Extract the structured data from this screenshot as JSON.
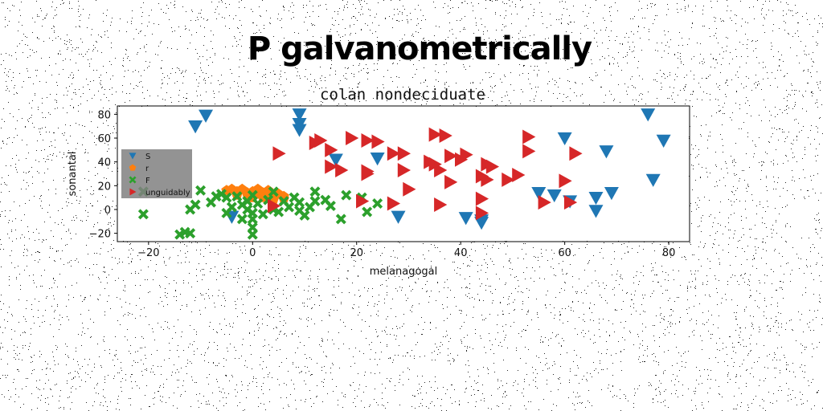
{
  "suptitle": "P galvanometrically",
  "chart_data": {
    "type": "scatter",
    "title": "colan nondeciduate",
    "xlabel": "melanagogal",
    "ylabel": "sonantal",
    "xlim": [
      -26,
      84
    ],
    "ylim": [
      -27,
      87
    ],
    "xticks": [
      -20,
      0,
      20,
      40,
      60,
      80
    ],
    "yticks": [
      -20,
      0,
      20,
      40,
      60,
      80
    ],
    "grid": false,
    "legend_position": "center-left",
    "series": [
      {
        "name": "S",
        "marker": "triangle-down",
        "color": "#1f77b4",
        "points": [
          [
            -11,
            70
          ],
          [
            -9,
            79
          ],
          [
            9,
            80
          ],
          [
            9,
            72
          ],
          [
            9,
            67
          ],
          [
            16,
            42
          ],
          [
            24,
            43
          ],
          [
            28,
            -6
          ],
          [
            41,
            -7
          ],
          [
            44,
            -9
          ],
          [
            44,
            -11
          ],
          [
            55,
            14
          ],
          [
            58,
            12
          ],
          [
            60,
            60
          ],
          [
            61,
            7
          ],
          [
            66,
            10
          ],
          [
            66,
            -1
          ],
          [
            68,
            49
          ],
          [
            69,
            14
          ],
          [
            76,
            80
          ],
          [
            77,
            25
          ],
          [
            79,
            58
          ],
          [
            -4,
            -6
          ]
        ]
      },
      {
        "name": "r",
        "marker": "pentagon",
        "color": "#ff7f0e",
        "points": [
          [
            -5,
            16
          ],
          [
            -4,
            17
          ],
          [
            -3,
            15
          ],
          [
            -2,
            17
          ],
          [
            -1,
            14
          ],
          [
            0,
            15
          ],
          [
            1,
            13
          ],
          [
            1,
            17
          ],
          [
            2,
            14
          ],
          [
            3,
            12
          ],
          [
            3,
            16
          ],
          [
            4,
            11
          ],
          [
            5,
            13
          ],
          [
            6,
            9
          ],
          [
            -3,
            12
          ],
          [
            -1,
            12
          ],
          [
            0,
            10
          ],
          [
            2,
            10
          ],
          [
            4,
            8
          ],
          [
            6,
            11
          ]
        ]
      },
      {
        "name": "F",
        "marker": "x",
        "color": "#2ca02c",
        "points": [
          [
            -21,
            15
          ],
          [
            -21,
            -4
          ],
          [
            -14,
            -21
          ],
          [
            -13,
            -19
          ],
          [
            -12,
            -20
          ],
          [
            -12,
            0
          ],
          [
            -11,
            4
          ],
          [
            -8,
            6
          ],
          [
            -7,
            11
          ],
          [
            -6,
            13
          ],
          [
            -5,
            10
          ],
          [
            -5,
            -3
          ],
          [
            -4,
            2
          ],
          [
            -3,
            11
          ],
          [
            -2,
            4
          ],
          [
            -2,
            -8
          ],
          [
            -1,
            7
          ],
          [
            -1,
            0
          ],
          [
            0,
            12
          ],
          [
            0,
            -3
          ],
          [
            0,
            -8
          ],
          [
            0,
            -15
          ],
          [
            0,
            -21
          ],
          [
            1,
            5
          ],
          [
            2,
            -4
          ],
          [
            3,
            8
          ],
          [
            4,
            0
          ],
          [
            4,
            15
          ],
          [
            5,
            -2
          ],
          [
            6,
            7
          ],
          [
            7,
            2
          ],
          [
            8,
            10
          ],
          [
            9,
            6
          ],
          [
            9,
            -1
          ],
          [
            10,
            -5
          ],
          [
            11,
            2
          ],
          [
            12,
            15
          ],
          [
            12,
            7
          ],
          [
            14,
            8
          ],
          [
            15,
            3
          ],
          [
            17,
            -8
          ],
          [
            18,
            12
          ],
          [
            21,
            10
          ],
          [
            22,
            -2
          ],
          [
            24,
            5
          ],
          [
            -10,
            16
          ]
        ]
      },
      {
        "name": "unguidably",
        "marker": "triangle-right",
        "color": "#d62728",
        "points": [
          [
            5,
            47
          ],
          [
            12,
            56
          ],
          [
            13,
            58
          ],
          [
            15,
            50
          ],
          [
            15,
            36
          ],
          [
            17,
            33
          ],
          [
            19,
            60
          ],
          [
            21,
            7
          ],
          [
            22,
            58
          ],
          [
            22,
            30
          ],
          [
            22,
            32
          ],
          [
            24,
            57
          ],
          [
            27,
            47
          ],
          [
            27,
            5
          ],
          [
            29,
            47
          ],
          [
            29,
            33
          ],
          [
            30,
            17
          ],
          [
            34,
            40
          ],
          [
            35,
            38
          ],
          [
            35,
            63
          ],
          [
            36,
            33
          ],
          [
            36,
            4
          ],
          [
            37,
            62
          ],
          [
            38,
            45
          ],
          [
            38,
            23
          ],
          [
            40,
            42
          ],
          [
            41,
            46
          ],
          [
            44,
            28
          ],
          [
            44,
            9
          ],
          [
            44,
            -3
          ],
          [
            45,
            38
          ],
          [
            45,
            25
          ],
          [
            46,
            36
          ],
          [
            49,
            25
          ],
          [
            51,
            29
          ],
          [
            53,
            61
          ],
          [
            53,
            49
          ],
          [
            56,
            6
          ],
          [
            60,
            24
          ],
          [
            61,
            6
          ],
          [
            62,
            47
          ],
          [
            4,
            3
          ]
        ]
      }
    ]
  }
}
